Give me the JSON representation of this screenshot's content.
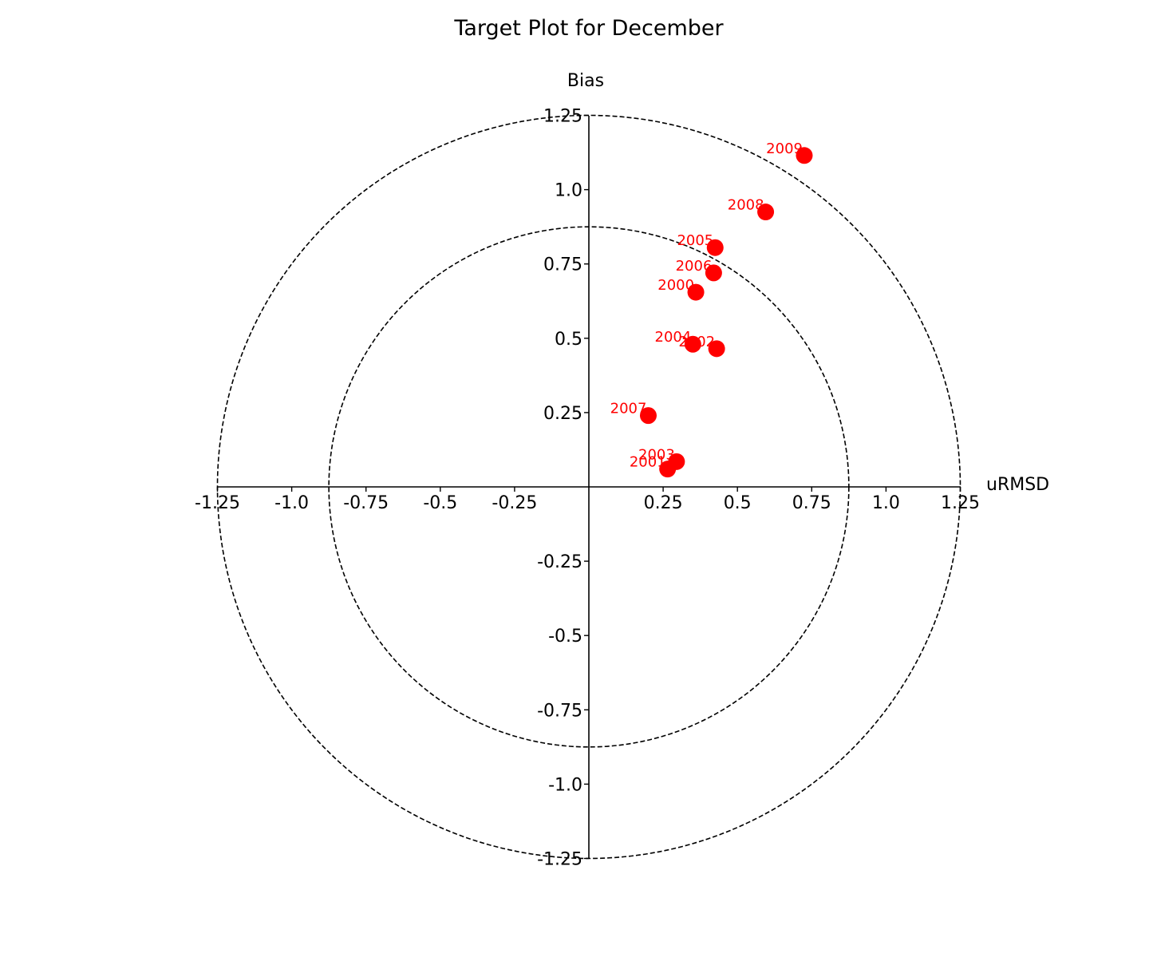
{
  "chart_data": {
    "type": "scatter",
    "subtype": "target-plot",
    "title": "Target Plot for December",
    "xlabel": "uRMSD",
    "ylabel": "Bias",
    "xlim": [
      -1.25,
      1.25
    ],
    "ylim": [
      -1.25,
      1.25
    ],
    "x_ticks": [
      -1.25,
      -1.0,
      -0.75,
      -0.5,
      -0.25,
      0.25,
      0.5,
      0.75,
      1.0,
      1.25
    ],
    "x_tick_labels": [
      "-1.25",
      "-1.0",
      "-0.75",
      "-0.5",
      "-0.25",
      "0.25",
      "0.5",
      "0.75",
      "1.0",
      "1.25"
    ],
    "y_ticks": [
      1.25,
      1.0,
      0.75,
      0.5,
      0.25,
      -0.25,
      -0.5,
      -0.75,
      -1.0,
      -1.25
    ],
    "y_tick_labels": [
      "1.25",
      "1.0",
      "0.75",
      "0.5",
      "0.25",
      "-0.25",
      "-0.5",
      "-0.75",
      "-1.0",
      "-1.25"
    ],
    "rings": [
      0.875,
      1.25
    ],
    "grid": false,
    "marker_color": "#ff0000",
    "label_color": "#ff0000",
    "points": [
      {
        "label": "2000",
        "x": 0.36,
        "y": 0.655
      },
      {
        "label": "2001",
        "x": 0.265,
        "y": 0.06
      },
      {
        "label": "2002",
        "x": 0.43,
        "y": 0.465
      },
      {
        "label": "2003",
        "x": 0.295,
        "y": 0.085
      },
      {
        "label": "2004",
        "x": 0.35,
        "y": 0.48
      },
      {
        "label": "2005",
        "x": 0.425,
        "y": 0.805
      },
      {
        "label": "2006",
        "x": 0.42,
        "y": 0.72
      },
      {
        "label": "2007",
        "x": 0.2,
        "y": 0.24
      },
      {
        "label": "2008",
        "x": 0.595,
        "y": 0.925
      },
      {
        "label": "2009",
        "x": 0.725,
        "y": 1.115
      }
    ]
  }
}
